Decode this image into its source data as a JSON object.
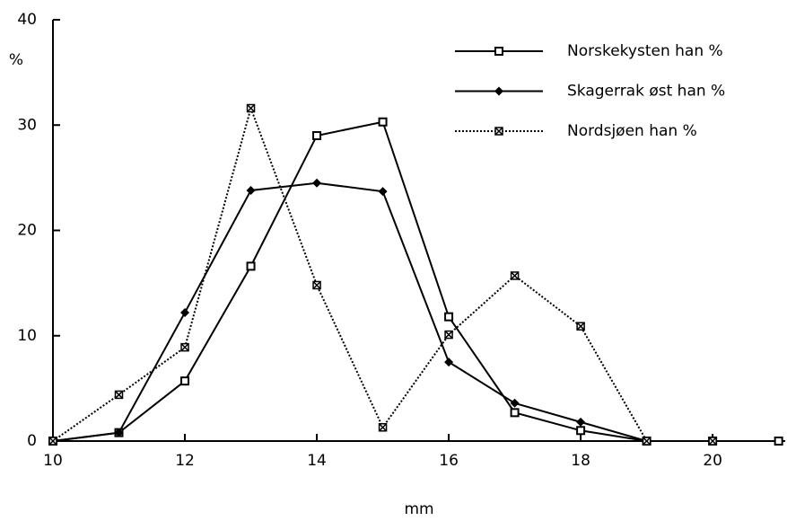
{
  "chart_data": {
    "type": "line",
    "x_label": "mm",
    "y_label": "%",
    "x": [
      10,
      11,
      12,
      13,
      14,
      15,
      16,
      17,
      18,
      19,
      20,
      21
    ],
    "series": [
      {
        "name": "Norskekysten han %",
        "color": "#000000",
        "line_style": "solid",
        "marker": "square",
        "values": [
          0,
          0.8,
          5.7,
          16.6,
          29.0,
          30.3,
          11.8,
          2.7,
          1.0,
          0,
          0,
          0
        ]
      },
      {
        "name": "Skagerrak øst han %",
        "color": "#000000",
        "line_style": "solid",
        "marker": "diamond",
        "values": [
          0,
          0.8,
          12.2,
          23.8,
          24.5,
          23.7,
          7.5,
          3.6,
          1.8,
          0,
          0,
          null
        ]
      },
      {
        "name": "Nordsjøen han %",
        "color": "#000000",
        "line_style": "dotted",
        "marker": "cross",
        "values": [
          0,
          4.4,
          8.9,
          31.6,
          14.8,
          1.3,
          10.1,
          15.7,
          10.9,
          0,
          0,
          null
        ]
      }
    ],
    "xlim": [
      10,
      21.1
    ],
    "ylim": [
      0,
      40
    ],
    "xticks": [
      10,
      12,
      14,
      16,
      18,
      20
    ],
    "yticks": [
      0,
      10,
      20,
      30,
      40
    ],
    "legend": "top-right"
  }
}
